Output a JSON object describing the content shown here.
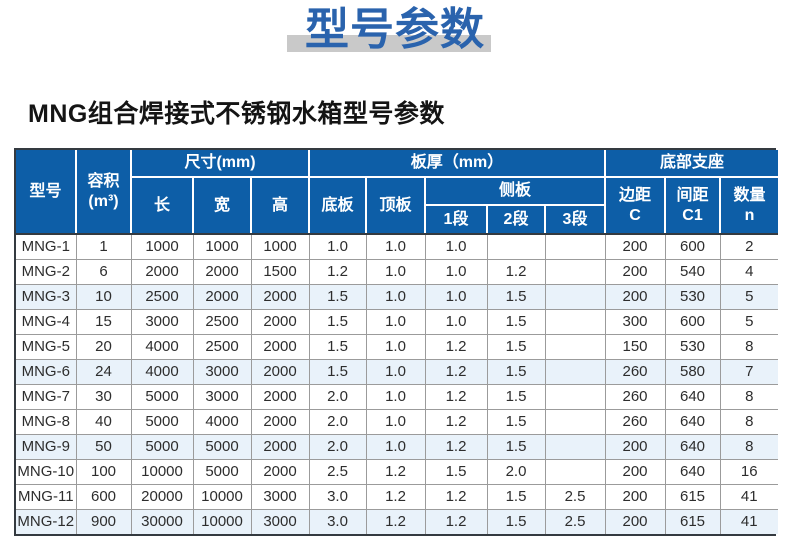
{
  "title": "型号参数",
  "subtitle": "MNG组合焊接式不锈钢水箱型号参数",
  "colors": {
    "header_blue": "#0d5ea7",
    "title_blue": "#2a63ad",
    "band_gray": "#c9c9c9",
    "row_tint": "#e9f2fa",
    "border_dark": "#343a40",
    "border_gray": "#9b9b9b"
  },
  "table": {
    "header": {
      "model": "型号",
      "volume_l1": "容积",
      "volume_l2": "(m³)",
      "size_group": "尺寸(mm)",
      "length": "长",
      "width": "宽",
      "height": "高",
      "thickness_group": "板厚（mm）",
      "bottom_plate": "底板",
      "top_plate": "顶板",
      "side_plate": "侧板",
      "seg1": "1段",
      "seg2": "2段",
      "seg3": "3段",
      "support_group": "底部支座",
      "margin_l1": "边距",
      "margin_l2": "C",
      "spacing_l1": "间距",
      "spacing_l2": "C1",
      "qty_l1": "数量",
      "qty_l2": "n"
    },
    "rows": [
      [
        "MNG-1",
        "1",
        "1000",
        "1000",
        "1000",
        "1.0",
        "1.0",
        "1.0",
        "",
        "",
        "200",
        "600",
        "2"
      ],
      [
        "MNG-2",
        "6",
        "2000",
        "2000",
        "1500",
        "1.2",
        "1.0",
        "1.0",
        "1.2",
        "",
        "200",
        "540",
        "4"
      ],
      [
        "MNG-3",
        "10",
        "2500",
        "2000",
        "2000",
        "1.5",
        "1.0",
        "1.0",
        "1.5",
        "",
        "200",
        "530",
        "5"
      ],
      [
        "MNG-4",
        "15",
        "3000",
        "2500",
        "2000",
        "1.5",
        "1.0",
        "1.0",
        "1.5",
        "",
        "300",
        "600",
        "5"
      ],
      [
        "MNG-5",
        "20",
        "4000",
        "2500",
        "2000",
        "1.5",
        "1.0",
        "1.2",
        "1.5",
        "",
        "150",
        "530",
        "8"
      ],
      [
        "MNG-6",
        "24",
        "4000",
        "3000",
        "2000",
        "1.5",
        "1.0",
        "1.2",
        "1.5",
        "",
        "260",
        "580",
        "7"
      ],
      [
        "MNG-7",
        "30",
        "5000",
        "3000",
        "2000",
        "2.0",
        "1.0",
        "1.2",
        "1.5",
        "",
        "260",
        "640",
        "8"
      ],
      [
        "MNG-8",
        "40",
        "5000",
        "4000",
        "2000",
        "2.0",
        "1.0",
        "1.2",
        "1.5",
        "",
        "260",
        "640",
        "8"
      ],
      [
        "MNG-9",
        "50",
        "5000",
        "5000",
        "2000",
        "2.0",
        "1.0",
        "1.2",
        "1.5",
        "",
        "200",
        "640",
        "8"
      ],
      [
        "MNG-10",
        "100",
        "10000",
        "5000",
        "2000",
        "2.5",
        "1.2",
        "1.5",
        "2.0",
        "",
        "200",
        "640",
        "16"
      ],
      [
        "MNG-11",
        "600",
        "20000",
        "10000",
        "3000",
        "3.0",
        "1.2",
        "1.2",
        "1.5",
        "2.5",
        "200",
        "615",
        "41"
      ],
      [
        "MNG-12",
        "900",
        "30000",
        "10000",
        "3000",
        "3.0",
        "1.2",
        "1.2",
        "1.5",
        "2.5",
        "200",
        "615",
        "41"
      ]
    ]
  }
}
